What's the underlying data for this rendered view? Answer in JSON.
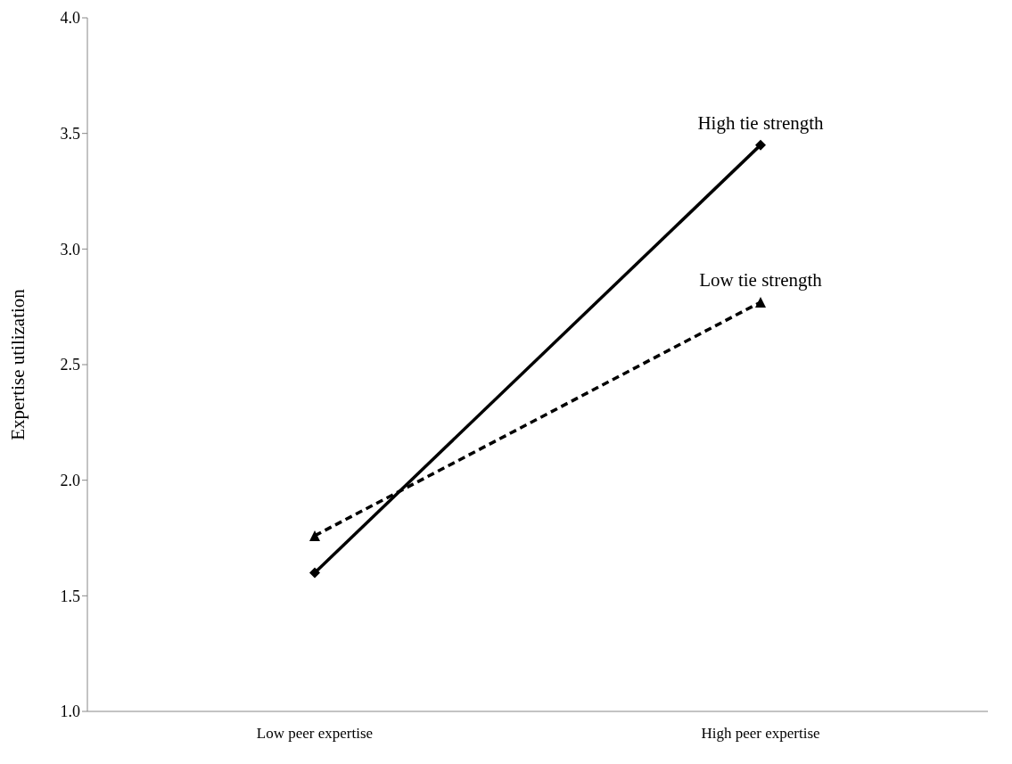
{
  "chart_data": {
    "type": "line",
    "ylabel": "Expertise utilization",
    "categories": [
      "Low peer expertise",
      "High peer expertise"
    ],
    "series": [
      {
        "name": "High tie strength",
        "color": "#000000",
        "values": [
          1.6,
          3.45
        ],
        "marker": "diamond",
        "line_style": "solid"
      },
      {
        "name": "Low tie strength",
        "color": "#000000",
        "values": [
          1.76,
          2.77
        ],
        "marker": "triangle",
        "line_style": "dashed"
      }
    ],
    "ylim": [
      1,
      4
    ],
    "yticks": [
      {
        "value": 1,
        "label": "1.0"
      },
      1.5,
      {
        "value": 2,
        "label": "2.0"
      },
      2.5,
      {
        "value": 3,
        "label": "3.0"
      },
      3.5,
      {
        "value": 4,
        "label": "4.0"
      }
    ],
    "grid": false,
    "legend": false
  }
}
